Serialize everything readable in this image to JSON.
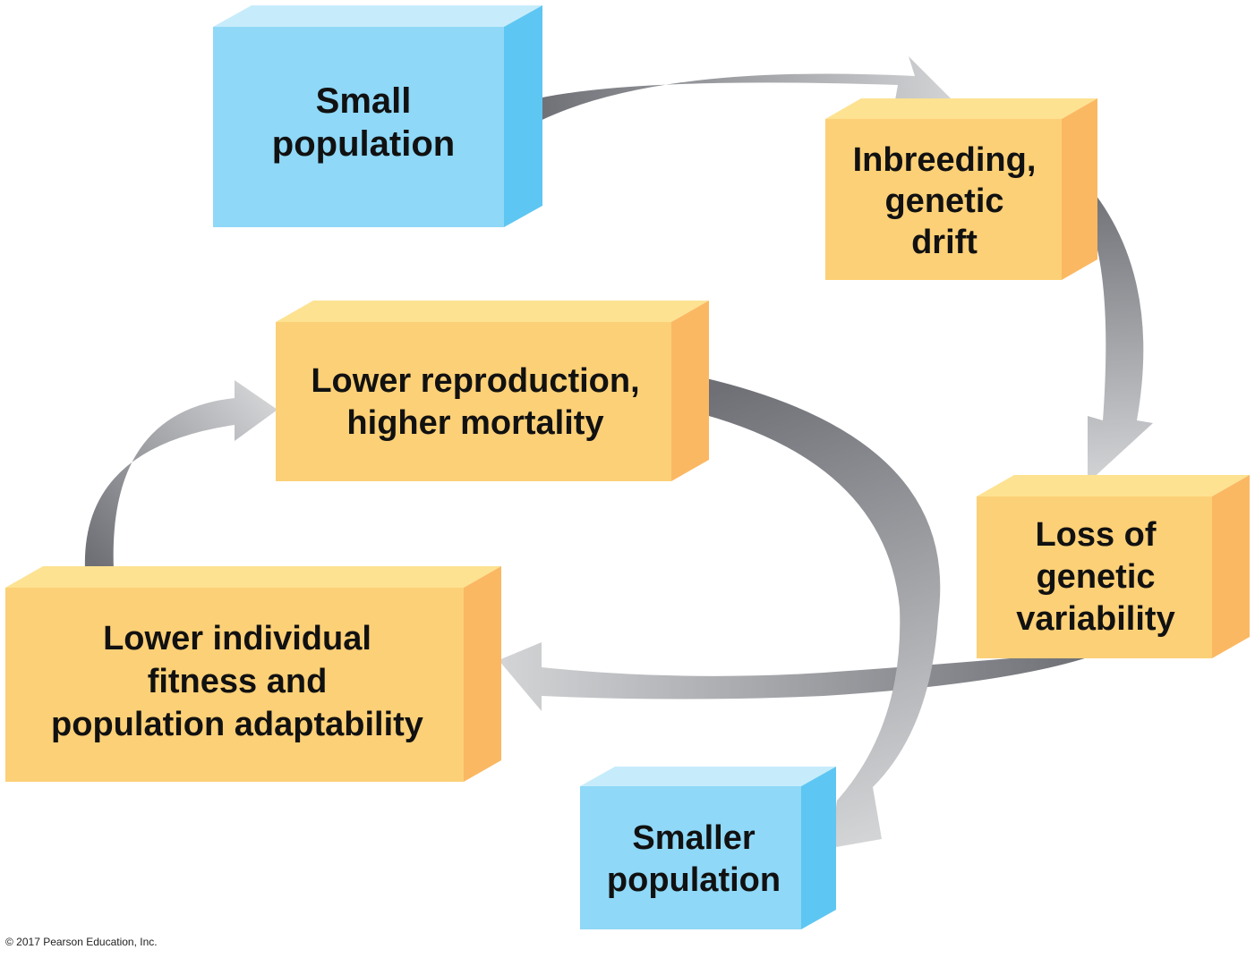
{
  "colors": {
    "blue_front": "#8fd8f7",
    "blue_top": "#c6ecfb",
    "blue_side": "#5ec6f2",
    "orange_front": "#fcd077",
    "orange_top": "#fde291",
    "orange_side": "#fbb862",
    "arrow_dark": "#6e7076",
    "arrow_light": "#d3d4d6",
    "text": "#111111"
  },
  "nodes": {
    "small_population": {
      "lines": [
        "Small",
        "population"
      ],
      "color": "blue"
    },
    "inbreeding": {
      "lines": [
        "Inbreeding,",
        "genetic",
        "drift"
      ],
      "color": "orange"
    },
    "loss_variability": {
      "lines": [
        "Loss of",
        "genetic",
        "variability"
      ],
      "color": "orange"
    },
    "lower_fitness": {
      "lines": [
        "Lower individual",
        "fitness and",
        "population adaptability"
      ],
      "color": "orange"
    },
    "lower_reproduction": {
      "lines": [
        "Lower reproduction,",
        "higher mortality"
      ],
      "color": "orange"
    },
    "smaller_population": {
      "lines": [
        "Smaller",
        "population"
      ],
      "color": "blue"
    }
  },
  "arrows": [
    {
      "from": "small_population",
      "to": "inbreeding"
    },
    {
      "from": "inbreeding",
      "to": "loss_variability"
    },
    {
      "from": "loss_variability",
      "to": "lower_fitness"
    },
    {
      "from": "lower_fitness",
      "to": "lower_reproduction"
    },
    {
      "from": "lower_reproduction",
      "to": "smaller_population"
    }
  ],
  "copyright": "© 2017 Pearson Education, Inc."
}
